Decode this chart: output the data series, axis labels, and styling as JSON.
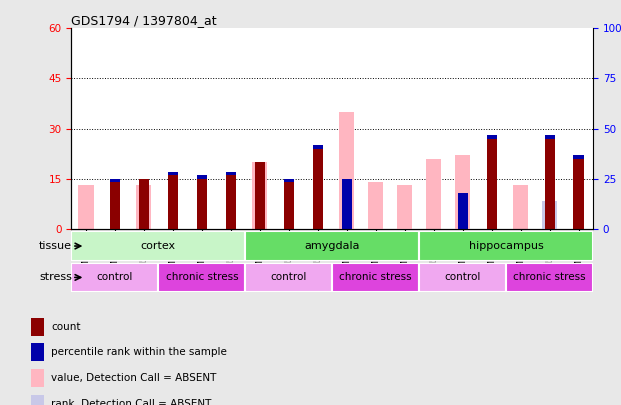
{
  "title": "GDS1794 / 1397804_at",
  "samples": [
    "GSM53314",
    "GSM53315",
    "GSM53316",
    "GSM53311",
    "GSM53312",
    "GSM53313",
    "GSM53305",
    "GSM53306",
    "GSM53307",
    "GSM53299",
    "GSM53300",
    "GSM53301",
    "GSM53308",
    "GSM53309",
    "GSM53310",
    "GSM53302",
    "GSM53303",
    "GSM53304"
  ],
  "count": [
    0,
    15,
    15,
    17,
    16,
    17,
    20,
    15,
    25,
    0,
    0,
    0,
    0,
    0,
    28,
    0,
    28,
    22
  ],
  "percentile": [
    0,
    16,
    0,
    18,
    17,
    17,
    0,
    16,
    18,
    25,
    0,
    0,
    0,
    18,
    18,
    0,
    16,
    17
  ],
  "absent_value": [
    13,
    0,
    13,
    0,
    0,
    0,
    20,
    0,
    0,
    35,
    14,
    13,
    21,
    22,
    0,
    13,
    0,
    0
  ],
  "absent_rank": [
    0,
    0,
    0,
    0,
    0,
    0,
    0,
    0,
    0,
    25,
    13,
    13,
    0,
    14,
    0,
    0,
    14,
    0
  ],
  "ylim_left": [
    0,
    60
  ],
  "ylim_right": [
    0,
    100
  ],
  "yticks_left": [
    0,
    15,
    30,
    45,
    60
  ],
  "yticks_right": [
    0,
    25,
    50,
    75,
    100
  ],
  "color_count": "#8b0000",
  "color_percentile": "#0000aa",
  "color_absent_value": "#ffb6c1",
  "color_absent_rank": "#c8c8e8",
  "bg_color": "#e8e8e8",
  "plot_bg": "#ffffff",
  "bar_width": 0.35,
  "tissue_defs": [
    [
      "cortex",
      0,
      6,
      "#c8f5c8"
    ],
    [
      "amygdala",
      6,
      12,
      "#66dd66"
    ],
    [
      "hippocampus",
      12,
      18,
      "#66dd66"
    ]
  ],
  "stress_defs": [
    [
      "control",
      0,
      3,
      "#f0a8f0"
    ],
    [
      "chronic stress",
      3,
      6,
      "#dd44dd"
    ],
    [
      "control",
      6,
      9,
      "#f0a8f0"
    ],
    [
      "chronic stress",
      9,
      12,
      "#dd44dd"
    ],
    [
      "control",
      12,
      15,
      "#f0a8f0"
    ],
    [
      "chronic stress",
      15,
      18,
      "#dd44dd"
    ]
  ],
  "legend_items": [
    [
      "#8b0000",
      "count"
    ],
    [
      "#0000aa",
      "percentile rank within the sample"
    ],
    [
      "#ffb6c1",
      "value, Detection Call = ABSENT"
    ],
    [
      "#c8c8e8",
      "rank, Detection Call = ABSENT"
    ]
  ]
}
